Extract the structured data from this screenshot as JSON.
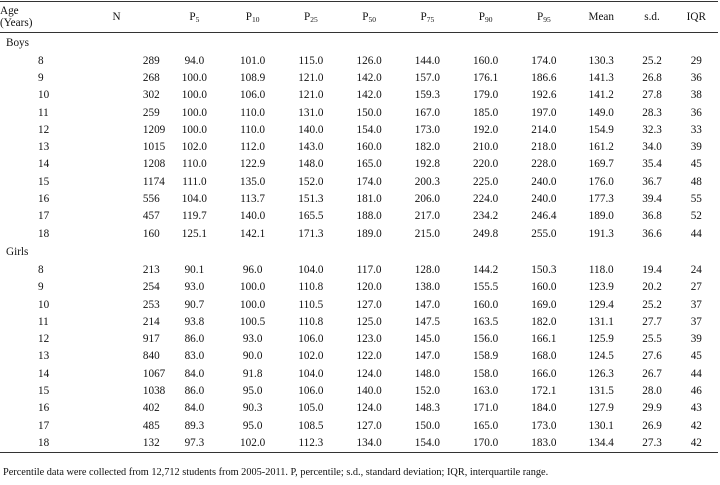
{
  "columns": [
    {
      "main": "Age",
      "sub2": "(Years)"
    },
    {
      "main": "N",
      "sub": ""
    },
    {
      "main": "P",
      "sub": "5"
    },
    {
      "main": "P",
      "sub": "10"
    },
    {
      "main": "P",
      "sub": "25"
    },
    {
      "main": "P",
      "sub": "50"
    },
    {
      "main": "P",
      "sub": "75"
    },
    {
      "main": "P",
      "sub": "90"
    },
    {
      "main": "P",
      "sub": "95"
    },
    {
      "main": "Mean",
      "sub": ""
    },
    {
      "main": "s.d.",
      "sub": ""
    },
    {
      "main": "IQR",
      "sub": ""
    }
  ],
  "groups": [
    {
      "label": "Boys",
      "rows": [
        [
          "8",
          "289",
          "94.0",
          "101.0",
          "115.0",
          "126.0",
          "144.0",
          "160.0",
          "174.0",
          "130.3",
          "25.2",
          "29"
        ],
        [
          "9",
          "268",
          "100.0",
          "108.9",
          "121.0",
          "142.0",
          "157.0",
          "176.1",
          "186.6",
          "141.3",
          "26.8",
          "36"
        ],
        [
          "10",
          "302",
          "100.0",
          "106.0",
          "121.0",
          "142.0",
          "159.3",
          "179.0",
          "192.6",
          "141.2",
          "27.8",
          "38"
        ],
        [
          "11",
          "259",
          "100.0",
          "110.0",
          "131.0",
          "150.0",
          "167.0",
          "185.0",
          "197.0",
          "149.0",
          "28.3",
          "36"
        ],
        [
          "12",
          "1209",
          "100.0",
          "110.0",
          "140.0",
          "154.0",
          "173.0",
          "192.0",
          "214.0",
          "154.9",
          "32.3",
          "33"
        ],
        [
          "13",
          "1015",
          "102.0",
          "112.0",
          "143.0",
          "160.0",
          "182.0",
          "210.0",
          "218.0",
          "161.2",
          "34.0",
          "39"
        ],
        [
          "14",
          "1208",
          "110.0",
          "122.9",
          "148.0",
          "165.0",
          "192.8",
          "220.0",
          "228.0",
          "169.7",
          "35.4",
          "45"
        ],
        [
          "15",
          "1174",
          "111.0",
          "135.0",
          "152.0",
          "174.0",
          "200.3",
          "225.0",
          "240.0",
          "176.0",
          "36.7",
          "48"
        ],
        [
          "16",
          "556",
          "104.0",
          "113.7",
          "151.3",
          "181.0",
          "206.0",
          "224.0",
          "240.0",
          "177.3",
          "39.4",
          "55"
        ],
        [
          "17",
          "457",
          "119.7",
          "140.0",
          "165.5",
          "188.0",
          "217.0",
          "234.2",
          "246.4",
          "189.0",
          "36.8",
          "52"
        ],
        [
          "18",
          "160",
          "125.1",
          "142.1",
          "171.3",
          "189.0",
          "215.0",
          "249.8",
          "255.0",
          "191.3",
          "36.6",
          "44"
        ]
      ]
    },
    {
      "label": "Girls",
      "rows": [
        [
          "8",
          "213",
          "90.1",
          "96.0",
          "104.0",
          "117.0",
          "128.0",
          "144.2",
          "150.3",
          "118.0",
          "19.4",
          "24"
        ],
        [
          "9",
          "254",
          "93.0",
          "100.0",
          "110.8",
          "120.0",
          "138.0",
          "155.5",
          "160.0",
          "123.9",
          "20.2",
          "27"
        ],
        [
          "10",
          "253",
          "90.7",
          "100.0",
          "110.5",
          "127.0",
          "147.0",
          "160.0",
          "169.0",
          "129.4",
          "25.2",
          "37"
        ],
        [
          "11",
          "214",
          "93.8",
          "100.5",
          "110.8",
          "125.0",
          "147.5",
          "163.5",
          "182.0",
          "131.1",
          "27.7",
          "37"
        ],
        [
          "12",
          "917",
          "86.0",
          "93.0",
          "106.0",
          "123.0",
          "145.0",
          "156.0",
          "166.1",
          "125.9",
          "25.5",
          "39"
        ],
        [
          "13",
          "840",
          "83.0",
          "90.0",
          "102.0",
          "122.0",
          "147.0",
          "158.9",
          "168.0",
          "124.5",
          "27.6",
          "45"
        ],
        [
          "14",
          "1067",
          "84.0",
          "91.8",
          "104.0",
          "124.0",
          "148.0",
          "158.0",
          "166.0",
          "126.3",
          "26.7",
          "44"
        ],
        [
          "15",
          "1038",
          "86.0",
          "95.0",
          "106.0",
          "140.0",
          "152.0",
          "163.0",
          "172.1",
          "131.5",
          "28.0",
          "46"
        ],
        [
          "16",
          "402",
          "84.0",
          "90.3",
          "105.0",
          "124.0",
          "148.3",
          "171.0",
          "184.0",
          "127.9",
          "29.9",
          "43"
        ],
        [
          "17",
          "485",
          "89.3",
          "95.0",
          "108.5",
          "127.0",
          "150.0",
          "165.0",
          "173.0",
          "130.1",
          "26.9",
          "42"
        ],
        [
          "18",
          "132",
          "97.3",
          "102.0",
          "112.3",
          "134.0",
          "154.0",
          "170.0",
          "183.0",
          "134.4",
          "27.3",
          "42"
        ]
      ]
    }
  ],
  "footnote": "Percentile data were collected from 12,712 students from 2005-2011. P, percentile; s.d., standard deviation; IQR, interquartile range."
}
